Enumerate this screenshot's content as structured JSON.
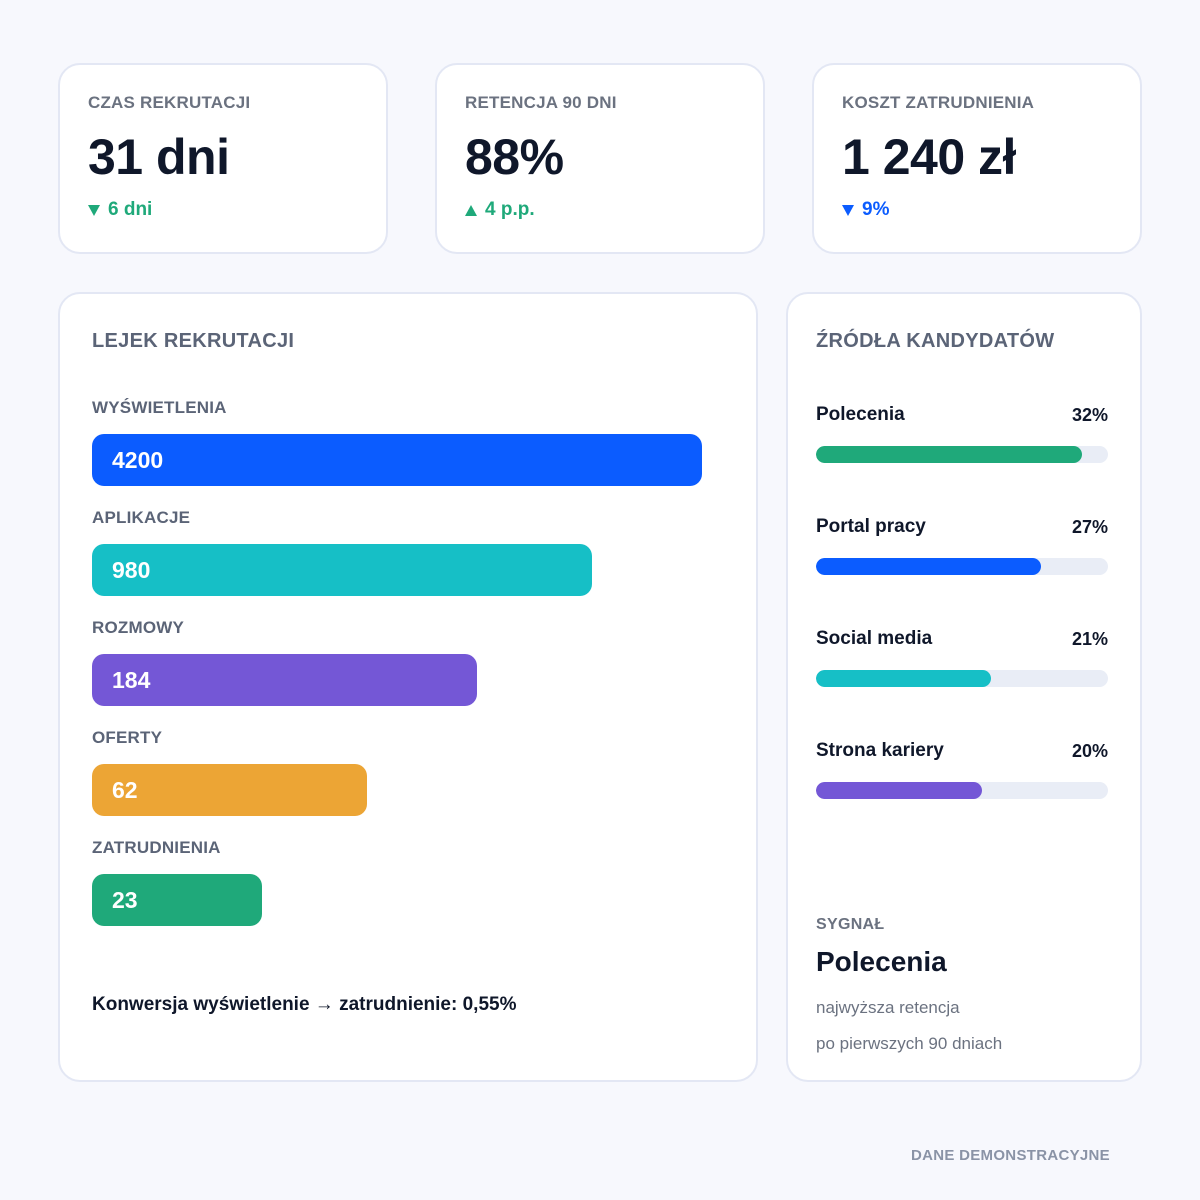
{
  "kpis": [
    {
      "label": "CZAS REKRUTACJI",
      "value": "31 dni",
      "delta": "6 dni",
      "direction": "down",
      "color": "#1fa97a"
    },
    {
      "label": "RETENCJA 90 DNI",
      "value": "88%",
      "delta": "4 p.p.",
      "direction": "up",
      "color": "#1fa97a"
    },
    {
      "label": "KOSZT ZATRUDNIENIA",
      "value": "1 240 zł",
      "delta": "9%",
      "direction": "down",
      "color": "#0b5cff"
    }
  ],
  "funnel": {
    "title": "LEJEK REKRUTACJI",
    "stages": [
      {
        "label": "WYŚWIETLENIA",
        "value": "4200",
        "color": "#0b5cff"
      },
      {
        "label": "APLIKACJE",
        "value": "980",
        "color": "#16bfc6"
      },
      {
        "label": "ROZMOWY",
        "value": "184",
        "color": "#7457d6"
      },
      {
        "label": "OFERTY",
        "value": "62",
        "color": "#eca535"
      },
      {
        "label": "ZATRUDNIENIA",
        "value": "23",
        "color": "#1fa97a"
      }
    ],
    "conversion": "Konwersja wyświetlenie → zatrudnienie: 0,55%"
  },
  "sources": {
    "title": "ŹRÓDŁA KANDYDATÓW",
    "items": [
      {
        "name": "Polecenia",
        "percent": "32%",
        "fill_fraction": 0.91,
        "color": "#1fa97a"
      },
      {
        "name": "Portal pracy",
        "percent": "27%",
        "fill_fraction": 0.77,
        "color": "#0b5cff"
      },
      {
        "name": "Social media",
        "percent": "21%",
        "fill_fraction": 0.6,
        "color": "#16bfc6"
      },
      {
        "name": "Strona kariery",
        "percent": "20%",
        "fill_fraction": 0.57,
        "color": "#7457d6"
      }
    ],
    "signal": {
      "label": "SYGNAŁ",
      "value": "Polecenia",
      "note_line1": "najwyższa retencja",
      "note_line2": "po pierwszych 90 dniach"
    }
  },
  "footer": "DANE DEMONSTRACYJNE"
}
